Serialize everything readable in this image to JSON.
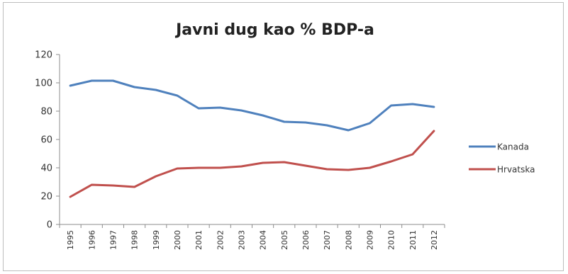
{
  "chart_data": {
    "type": "line",
    "title": "Javni dug kao % BDP-a",
    "xlabel": "",
    "ylabel": "",
    "ylim": [
      0,
      120
    ],
    "yticks": [
      0,
      20,
      40,
      60,
      80,
      100,
      120
    ],
    "grid": false,
    "legend_position": "right",
    "x": [
      "1995",
      "1996",
      "1997",
      "1998",
      "1999",
      "2000",
      "2001",
      "2002",
      "2003",
      "2004",
      "2005",
      "2006",
      "2007",
      "2008",
      "2009",
      "2010",
      "2011",
      "2012"
    ],
    "series": [
      {
        "name": "Kanada",
        "color": "#4f81bd",
        "values": [
          98,
          101.5,
          101.5,
          97,
          95,
          91,
          82,
          82.5,
          80.5,
          77,
          72.5,
          72,
          70,
          66.5,
          71.5,
          84,
          85,
          83
        ]
      },
      {
        "name": "Hrvatska",
        "color": "#c0504d",
        "values": [
          19.5,
          28,
          27.5,
          26.5,
          34,
          39.5,
          40,
          40,
          41,
          43.5,
          44,
          41.5,
          39,
          38.5,
          40,
          44.5,
          49.5,
          66
        ]
      }
    ]
  }
}
